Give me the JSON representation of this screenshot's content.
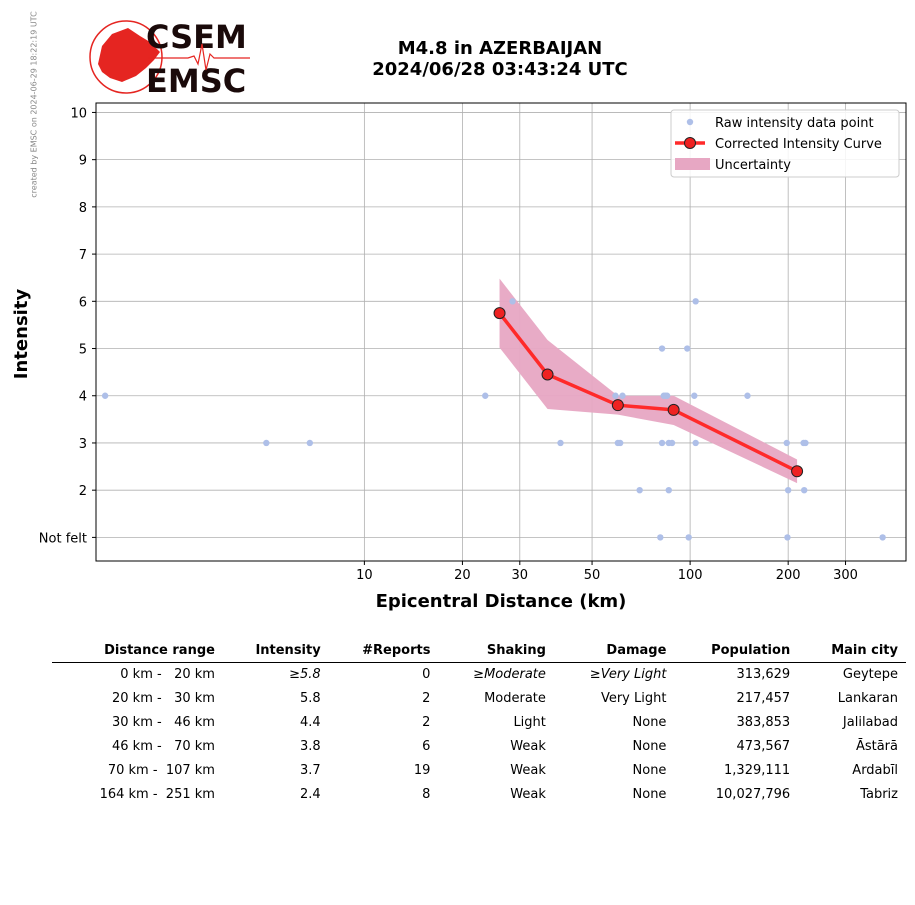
{
  "watermark": "created by EMSC on 2024-06-29 18:22:19 UTC",
  "logo": {
    "line1": "CSEM",
    "line2": "EMSC"
  },
  "title": {
    "line1": "M4.8 in AZERBAIJAN",
    "line2": "2024/06/28 03:43:24 UTC"
  },
  "colors": {
    "raw": "#aebfe8",
    "curve": "#ff2a2a",
    "marker": "#ee2222",
    "band": "#e7a7c3",
    "grid": "#b0b0b0",
    "logo_red": "#e52521"
  },
  "chart_data": {
    "type": "scatter",
    "xlabel": "Epicentral Distance (km)",
    "ylabel": "Intensity",
    "xscale": "log",
    "xlim": [
      1.5,
      460
    ],
    "ylim": [
      0.5,
      10.2
    ],
    "x_ticks": [
      10,
      20,
      30,
      50,
      100,
      200,
      300
    ],
    "x_tick_labels": [
      "10",
      "20",
      "30",
      "50",
      "100",
      "200",
      "300"
    ],
    "y_ticks": [
      1,
      2,
      3,
      4,
      5,
      6,
      7,
      8,
      9,
      10
    ],
    "y_tick_labels": [
      "Not felt",
      "2",
      "3",
      "4",
      "5",
      "6",
      "7",
      "8",
      "9",
      "10"
    ],
    "grid": true,
    "legend_position": "top-right",
    "legend": [
      "Raw intensity data point",
      "Corrected Intensity Curve",
      "Uncertainty"
    ],
    "raw_points": [
      [
        1.6,
        4
      ],
      [
        5,
        3
      ],
      [
        6.8,
        3
      ],
      [
        23.5,
        4
      ],
      [
        28.5,
        6
      ],
      [
        40,
        3
      ],
      [
        59,
        4
      ],
      [
        60,
        3
      ],
      [
        61,
        3
      ],
      [
        62,
        4
      ],
      [
        70,
        2
      ],
      [
        82,
        5
      ],
      [
        82,
        3
      ],
      [
        83,
        4
      ],
      [
        84,
        4
      ],
      [
        85,
        4
      ],
      [
        86,
        2
      ],
      [
        86,
        3
      ],
      [
        88,
        3
      ],
      [
        81,
        1
      ],
      [
        98,
        5
      ],
      [
        99,
        1
      ],
      [
        104,
        6
      ],
      [
        103,
        4
      ],
      [
        104,
        3
      ],
      [
        150,
        4
      ],
      [
        198,
        3
      ],
      [
        200,
        2
      ],
      [
        199,
        1
      ],
      [
        223,
        3
      ],
      [
        226,
        3
      ],
      [
        224,
        2
      ],
      [
        390,
        1
      ]
    ],
    "curve": {
      "x": [
        26,
        36.5,
        60,
        89,
        213
      ],
      "y": [
        5.75,
        4.45,
        3.8,
        3.7,
        2.4
      ]
    },
    "uncertainty": {
      "x": [
        26,
        36.5,
        60,
        89,
        213
      ],
      "upper": [
        6.48,
        5.18,
        4.0,
        4.0,
        2.65
      ],
      "lower": [
        5.02,
        3.72,
        3.6,
        3.38,
        2.15
      ]
    }
  },
  "table": {
    "headers": [
      "Distance range",
      "Intensity",
      "#Reports",
      "Shaking",
      "Damage",
      "Population",
      "Main city"
    ],
    "rows": [
      {
        "range": "0 km -   20 km",
        "intensity": "≥5.8",
        "reports": "0",
        "shaking": "≥Moderate",
        "damage": "≥Very Light",
        "population": "313,629",
        "city": "Geytepe"
      },
      {
        "range": "20 km -   30 km",
        "intensity": "5.8",
        "reports": "2",
        "shaking": "Moderate",
        "damage": "Very Light",
        "population": "217,457",
        "city": "Lankaran"
      },
      {
        "range": "30 km -   46 km",
        "intensity": "4.4",
        "reports": "2",
        "shaking": "Light",
        "damage": "None",
        "population": "383,853",
        "city": "Jalilabad"
      },
      {
        "range": "46 km -   70 km",
        "intensity": "3.8",
        "reports": "6",
        "shaking": "Weak",
        "damage": "None",
        "population": "473,567",
        "city": "Āstārā"
      },
      {
        "range": "70 km -  107 km",
        "intensity": "3.7",
        "reports": "19",
        "shaking": "Weak",
        "damage": "None",
        "population": "1,329,111",
        "city": "Ardabīl"
      },
      {
        "range": "164 km -  251 km",
        "intensity": "2.4",
        "reports": "8",
        "shaking": "Weak",
        "damage": "None",
        "population": "10,027,796",
        "city": "Tabriz"
      }
    ]
  }
}
